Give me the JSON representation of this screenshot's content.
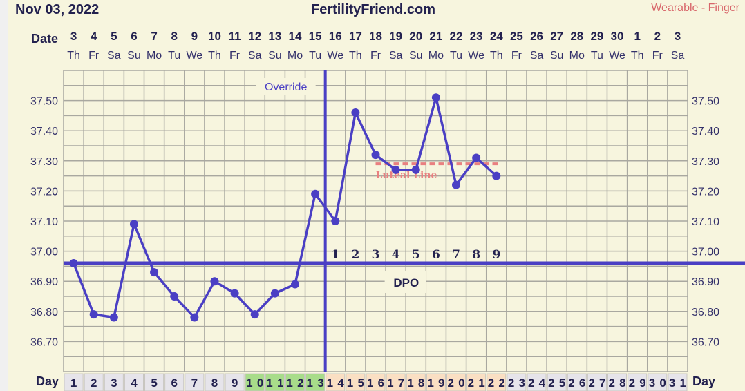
{
  "header": {
    "date": "Nov 03, 2022",
    "site": "FertilityFriend.com",
    "method": "Wearable - Finger"
  },
  "chart_data": {
    "type": "line",
    "row_labels": {
      "date": "Date",
      "day": "Day"
    },
    "dates": [
      "3",
      "4",
      "5",
      "6",
      "7",
      "8",
      "9",
      "10",
      "11",
      "12",
      "13",
      "14",
      "15",
      "16",
      "17",
      "18",
      "19",
      "20",
      "21",
      "22",
      "23",
      "24",
      "25",
      "26",
      "27",
      "28",
      "29",
      "30",
      "1",
      "2",
      "3"
    ],
    "weekdays": [
      "Th",
      "Fr",
      "Sa",
      "Su",
      "Mo",
      "Tu",
      "We",
      "Th",
      "Fr",
      "Sa",
      "Su",
      "Mo",
      "Tu",
      "We",
      "Th",
      "Fr",
      "Sa",
      "Su",
      "Mo",
      "Tu",
      "We",
      "Th",
      "Fr",
      "Sa",
      "Su",
      "Mo",
      "Tu",
      "We",
      "Th",
      "Fr",
      "Sa"
    ],
    "days": [
      1,
      2,
      3,
      4,
      5,
      6,
      7,
      8,
      9,
      10,
      11,
      12,
      13,
      14,
      15,
      16,
      17,
      18,
      19,
      20,
      21,
      22,
      23,
      24,
      25,
      26,
      27,
      28,
      29,
      30,
      31
    ],
    "fertile_days": [
      10,
      11,
      12,
      13
    ],
    "luteal_days": [
      14,
      15,
      16,
      17,
      18,
      19,
      20,
      21,
      22
    ],
    "temps": [
      36.96,
      36.79,
      36.78,
      37.09,
      36.93,
      36.85,
      36.78,
      36.9,
      36.86,
      36.79,
      36.86,
      36.89,
      37.19,
      37.1,
      37.46,
      37.32,
      37.27,
      37.27,
      37.51,
      37.22,
      37.31,
      37.25
    ],
    "ylim": [
      36.6,
      37.6
    ],
    "yticks": [
      "37.50",
      "37.40",
      "37.30",
      "37.20",
      "37.10",
      "37.00",
      "36.90",
      "36.80",
      "36.70"
    ],
    "coverline": 36.96,
    "ovulation_day": 13,
    "ovulation_label": "Override",
    "dpo_label": "DPO",
    "dpo": [
      "1",
      "2",
      "3",
      "4",
      "5",
      "6",
      "7",
      "8",
      "9"
    ],
    "luteal_line": {
      "label": "Luteal Line",
      "value": 37.29,
      "from_day": 16,
      "to_day": 22
    },
    "colors": {
      "line": "#4a3fc4",
      "luteal": "#e98080",
      "fertile": "#a8dc8a",
      "luteal_bg": "#fadfc3",
      "normal_bg": "#e6e4ea",
      "grid": "#a9a8a0"
    }
  }
}
